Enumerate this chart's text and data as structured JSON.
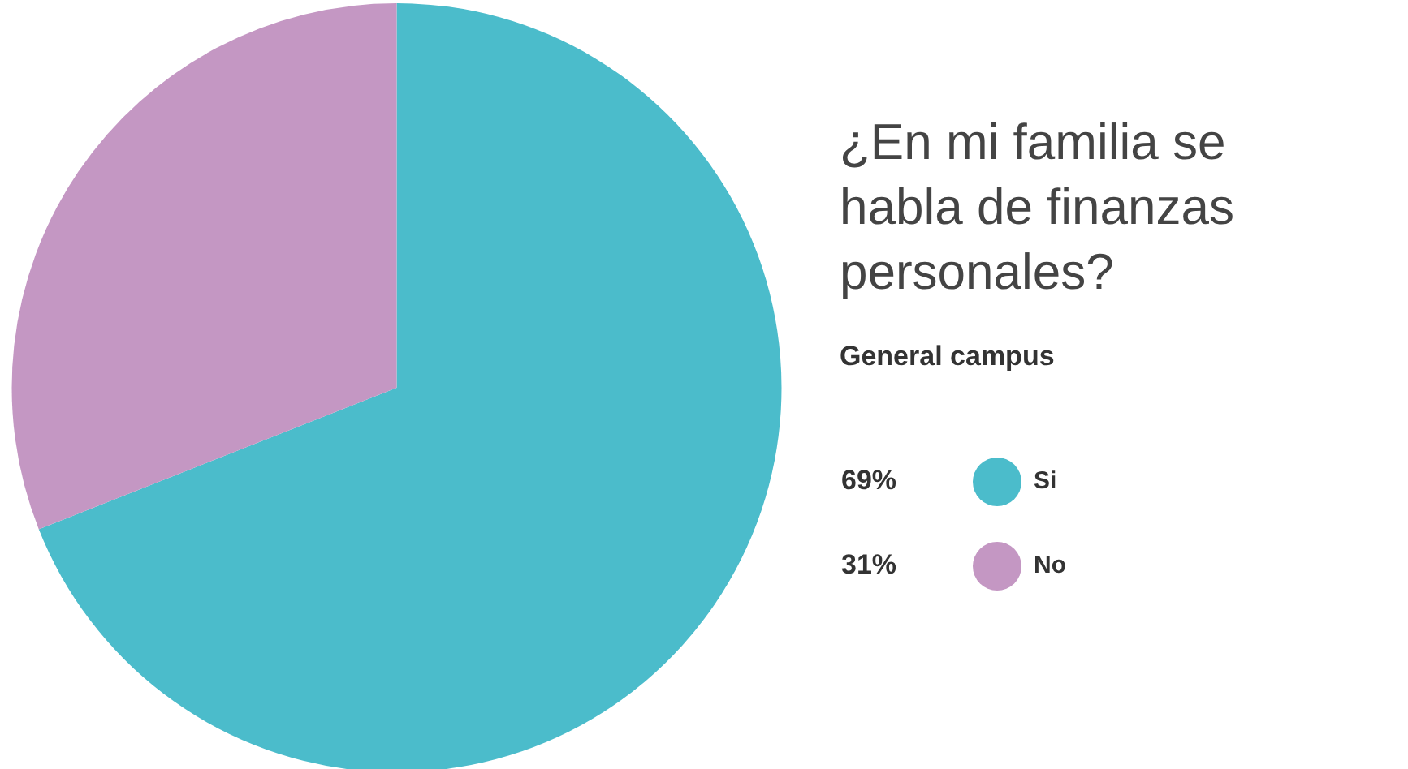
{
  "chart_data": {
    "type": "pie",
    "title": "¿En mi familia se habla de finanzas personales?",
    "subtitle": "General campus",
    "categories": [
      "Si",
      "No"
    ],
    "values": [
      69,
      31
    ],
    "colors": [
      "#4bbccb",
      "#c497c3"
    ],
    "value_labels": [
      "69%",
      "31%"
    ],
    "legend": "right"
  }
}
